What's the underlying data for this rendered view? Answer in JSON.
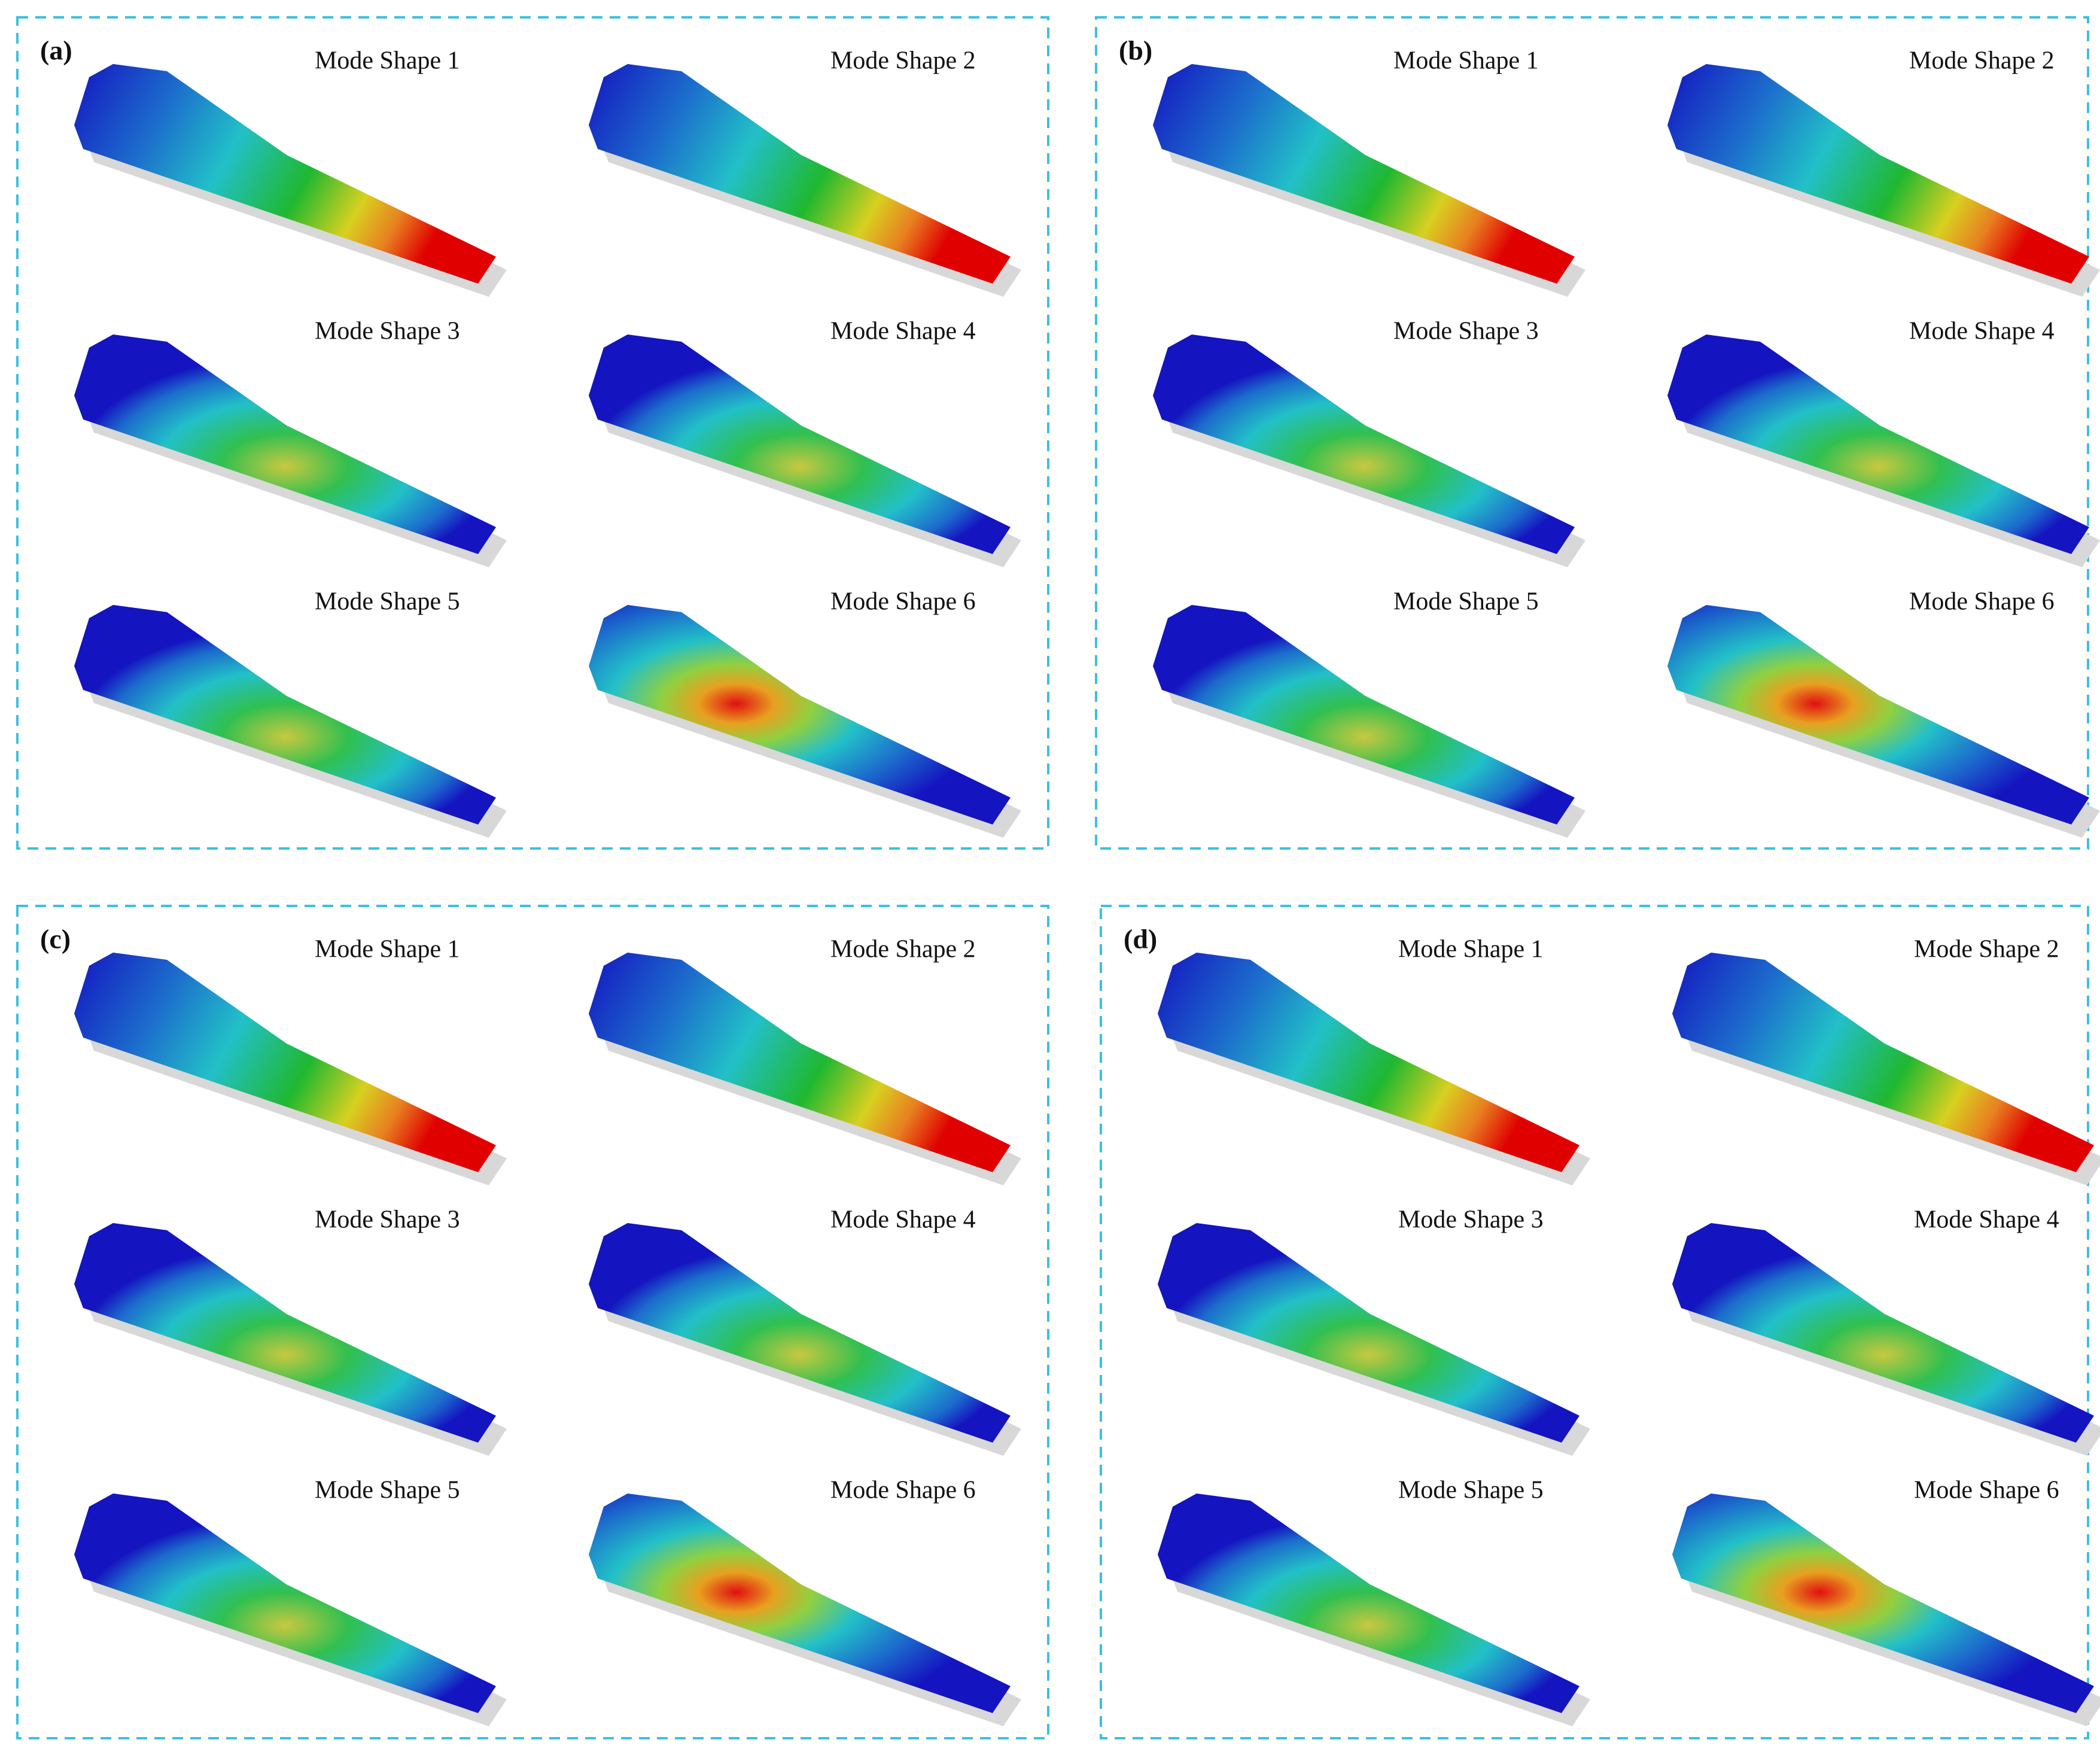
{
  "panels": [
    {
      "label": "(a)",
      "modes": [
        "Mode Shape 1",
        "Mode Shape 2",
        "Mode Shape 3",
        "Mode Shape 4",
        "Mode Shape 5",
        "Mode Shape 6"
      ]
    },
    {
      "label": "(b)",
      "modes": [
        "Mode Shape 1",
        "Mode Shape 2",
        "Mode Shape 3",
        "Mode Shape 4",
        "Mode Shape 5",
        "Mode Shape 6"
      ]
    },
    {
      "label": "(c)",
      "modes": [
        "Mode Shape 1",
        "Mode Shape 2",
        "Mode Shape 3",
        "Mode Shape 4",
        "Mode Shape 5",
        "Mode Shape 6"
      ]
    },
    {
      "label": "(d)",
      "modes": [
        "Mode Shape 1",
        "Mode Shape 2",
        "Mode Shape 3",
        "Mode Shape 4",
        "Mode Shape 5",
        "Mode Shape 6"
      ]
    }
  ]
}
